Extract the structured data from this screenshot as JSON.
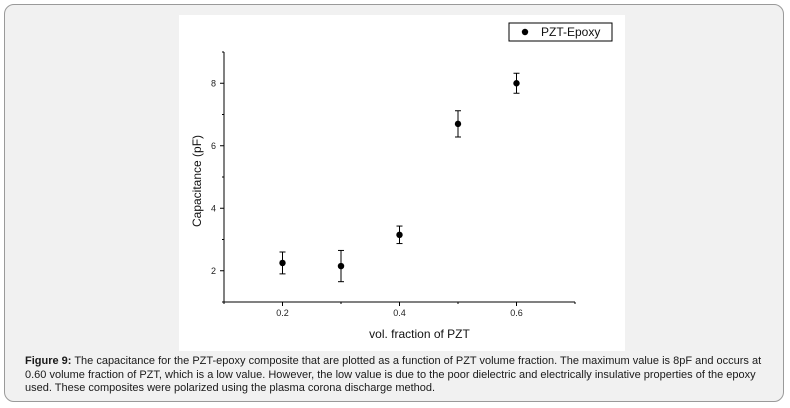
{
  "chart_data": {
    "type": "scatter",
    "x": [
      0.2,
      0.3,
      0.4,
      0.5,
      0.6
    ],
    "series": [
      {
        "name": "PZT-Epoxy",
        "values": [
          2.25,
          2.15,
          3.15,
          6.7,
          8.0
        ],
        "error": [
          0.35,
          0.5,
          0.28,
          0.42,
          0.32
        ],
        "color": "#000000"
      }
    ],
    "xlabel": "vol. fraction of PZT",
    "ylabel": "Capacitance (pF)",
    "xlim": [
      0.1,
      0.7
    ],
    "ylim": [
      1,
      9
    ],
    "xticks": [
      "0.2",
      "0.4",
      "0.6"
    ],
    "yticks": [
      "2",
      "4",
      "6",
      "8"
    ],
    "grid": false,
    "legend_position": "top-right"
  },
  "caption": {
    "label": "Figure 9:",
    "text": "The capacitance for the PZT-epoxy composite that are plotted as a function of PZT volume fraction. The maximum value is 8pF and occurs at 0.60 volume fraction of PZT, which is a low value. However, the low value is due to the poor dielectric and electrically insulative properties of the epoxy used. These composites were polarized using the plasma corona discharge method."
  }
}
